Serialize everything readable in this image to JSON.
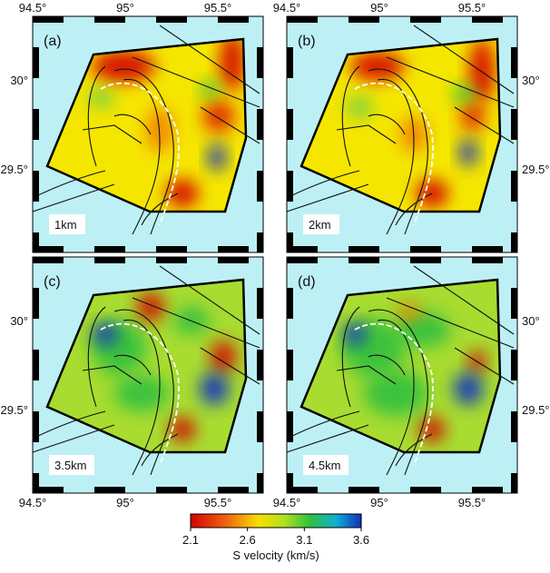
{
  "panels": [
    {
      "label": "(a)",
      "depth": "1km"
    },
    {
      "label": "(b)",
      "depth": "2km"
    },
    {
      "label": "(c)",
      "depth": "3.5km"
    },
    {
      "label": "(d)",
      "depth": "4.5km"
    }
  ],
  "lon_labels": [
    "94.5°",
    "95°",
    "95.5°"
  ],
  "lat_labels": [
    "30°",
    "29.5°"
  ],
  "colorbar": {
    "ticks": [
      2.1,
      2.6,
      3.1,
      3.6
    ],
    "label": "S velocity (km/s)"
  }
}
